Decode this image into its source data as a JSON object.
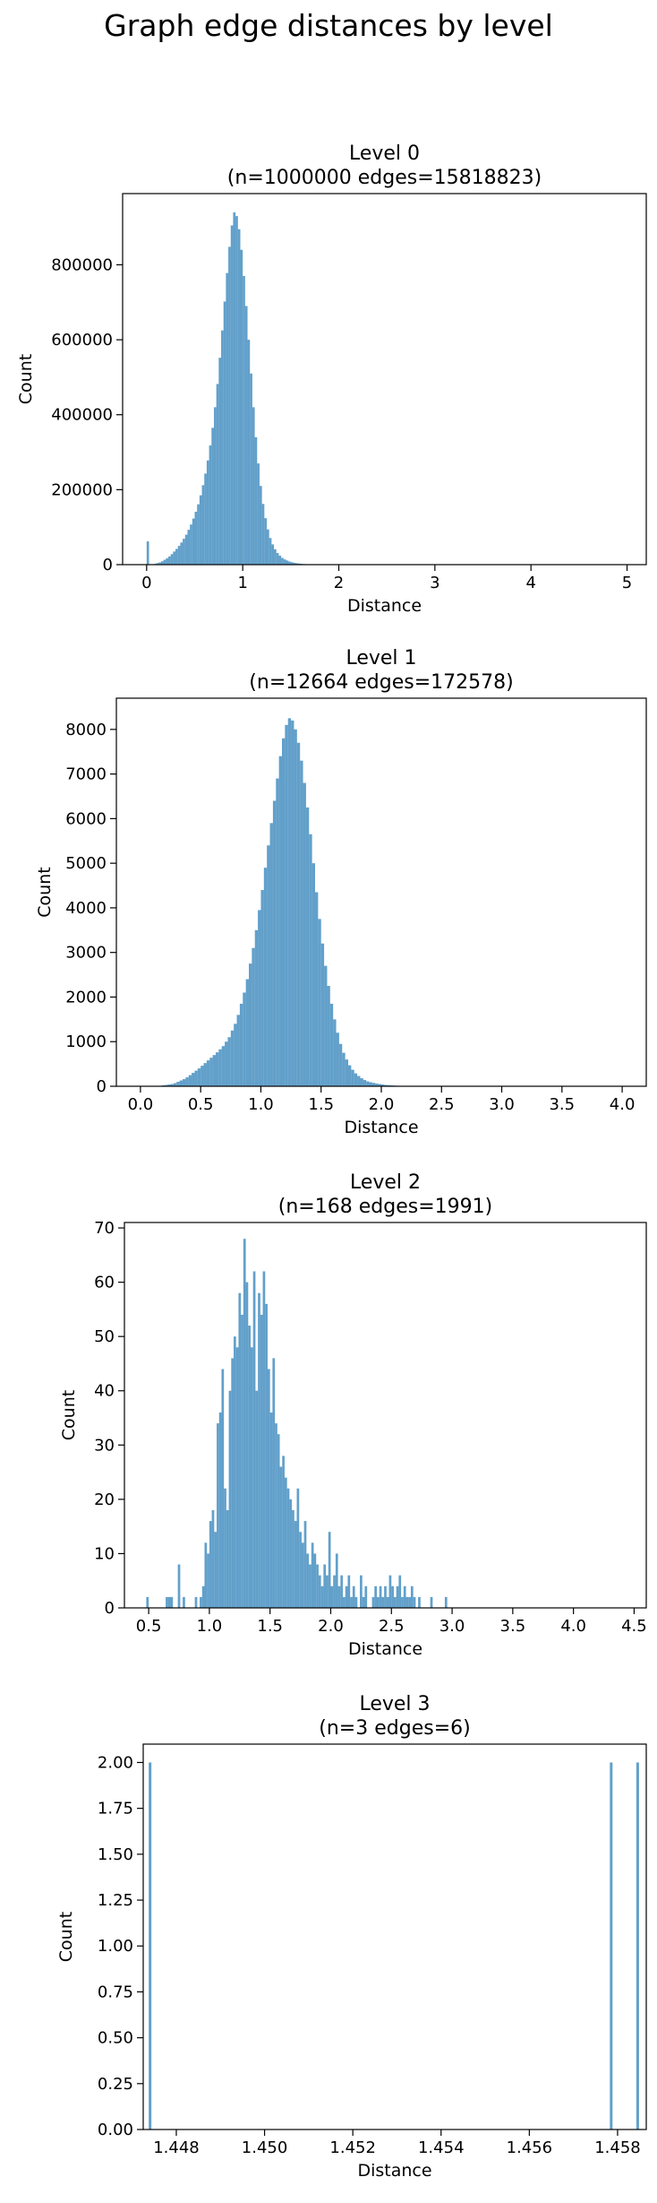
{
  "figure": {
    "suptitle": "Graph edge distances by level"
  },
  "chart_data": [
    {
      "type": "bar",
      "title_line1": "Level 0",
      "title_line2": "(n=1000000 edges=15818823)",
      "xlabel": "Distance",
      "ylabel": "Count",
      "xlim": [
        -0.25,
        5.2
      ],
      "ylim": [
        0,
        990000
      ],
      "xticks": [
        0,
        1,
        2,
        3,
        4,
        5
      ],
      "xtick_labels": [
        "0",
        "1",
        "2",
        "3",
        "4",
        "5"
      ],
      "yticks": [
        0,
        200000,
        400000,
        600000,
        800000
      ],
      "ytick_labels": [
        "0",
        "200000",
        "400000",
        "600000",
        "800000"
      ],
      "bin_start": 0,
      "bin_width": 0.025,
      "color": "#1f77b4",
      "values": [
        62000,
        0,
        0,
        2000,
        4000,
        6000,
        9000,
        13000,
        17000,
        22000,
        28000,
        35000,
        42000,
        50000,
        59000,
        69000,
        80000,
        93000,
        107000,
        123000,
        141000,
        161000,
        185000,
        212000,
        243000,
        278000,
        318000,
        365000,
        420000,
        482000,
        552000,
        625000,
        702000,
        778000,
        848000,
        905000,
        940000,
        930000,
        895000,
        840000,
        770000,
        690000,
        600000,
        510000,
        420000,
        340000,
        270000,
        210000,
        162000,
        124000,
        94000,
        71000,
        54000,
        41000,
        31000,
        24000,
        18000,
        14000,
        11000,
        8500,
        6500,
        5000,
        3800,
        2900,
        2200,
        1600,
        1200,
        900,
        650,
        450,
        300,
        200,
        130,
        80,
        50,
        30,
        20,
        10
      ]
    },
    {
      "type": "bar",
      "title_line1": "Level 1",
      "title_line2": "(n=12664 edges=172578)",
      "xlabel": "Distance",
      "ylabel": "Count",
      "xlim": [
        -0.2,
        4.2
      ],
      "ylim": [
        0,
        8700
      ],
      "xticks": [
        0,
        0.5,
        1,
        1.5,
        2,
        2.5,
        3,
        3.5,
        4
      ],
      "xtick_labels": [
        "0.0",
        "0.5",
        "1.0",
        "1.5",
        "2.0",
        "2.5",
        "3.0",
        "3.5",
        "4.0"
      ],
      "yticks": [
        0,
        1000,
        2000,
        3000,
        4000,
        5000,
        6000,
        7000,
        8000
      ],
      "ytick_labels": [
        "0",
        "1000",
        "2000",
        "3000",
        "4000",
        "5000",
        "6000",
        "7000",
        "8000"
      ],
      "bin_start": 0,
      "bin_width": 0.025,
      "color": "#1f77b4",
      "values": [
        0,
        0,
        0,
        0,
        0,
        0,
        10,
        20,
        30,
        40,
        50,
        70,
        100,
        130,
        160,
        200,
        250,
        300,
        350,
        400,
        460,
        520,
        580,
        640,
        700,
        760,
        830,
        900,
        1000,
        1100,
        1250,
        1400,
        1600,
        1850,
        2100,
        2400,
        2750,
        3100,
        3500,
        3950,
        4400,
        4900,
        5400,
        5900,
        6400,
        6900,
        7400,
        7800,
        8100,
        8250,
        8200,
        8000,
        7700,
        7300,
        6800,
        6250,
        5650,
        5000,
        4350,
        3750,
        3200,
        2700,
        2250,
        1850,
        1500,
        1200,
        950,
        750,
        600,
        470,
        370,
        290,
        230,
        180,
        140,
        110,
        90,
        75,
        60,
        50,
        40,
        30,
        25,
        20,
        15,
        12,
        10,
        8,
        6,
        5,
        4,
        3,
        2,
        1,
        1
      ]
    },
    {
      "type": "bar",
      "title_line1": "Level 2",
      "title_line2": "(n=168 edges=1991)",
      "xlabel": "Distance",
      "ylabel": "Count",
      "xlim": [
        0.3,
        4.6
      ],
      "ylim": [
        0,
        71
      ],
      "xticks": [
        0.5,
        1,
        1.5,
        2,
        2.5,
        3,
        3.5,
        4,
        4.5
      ],
      "xtick_labels": [
        "0.5",
        "1.0",
        "1.5",
        "2.0",
        "2.5",
        "3.0",
        "3.5",
        "4.0",
        "4.5"
      ],
      "yticks": [
        0,
        10,
        20,
        30,
        40,
        50,
        60,
        70
      ],
      "ytick_labels": [
        "0",
        "10",
        "20",
        "30",
        "40",
        "50",
        "60",
        "70"
      ],
      "bin_start": 0.48,
      "bin_width": 0.02,
      "color": "#1f77b4",
      "values": [
        2,
        0,
        0,
        0,
        0,
        0,
        0,
        0,
        2,
        2,
        2,
        0,
        0,
        8,
        0,
        2,
        0,
        0,
        0,
        0,
        2,
        0,
        2,
        4,
        12,
        10,
        16,
        18,
        14,
        34,
        36,
        44,
        22,
        18,
        40,
        46,
        50,
        48,
        58,
        54,
        68,
        60,
        52,
        48,
        62,
        40,
        58,
        54,
        62,
        56,
        44,
        36,
        46,
        34,
        32,
        26,
        28,
        24,
        22,
        20,
        18,
        16,
        22,
        14,
        12,
        16,
        10,
        8,
        12,
        10,
        8,
        6,
        4,
        8,
        6,
        14,
        4,
        6,
        10,
        4,
        6,
        2,
        4,
        6,
        2,
        4,
        2,
        0,
        6,
        2,
        4,
        0,
        0,
        2,
        4,
        2,
        4,
        2,
        4,
        2,
        6,
        4,
        2,
        4,
        6,
        2,
        4,
        2,
        2,
        4,
        2,
        0,
        2,
        0,
        0,
        0,
        0,
        2,
        0,
        0,
        0,
        0,
        0,
        2,
        0,
        0,
        0,
        0,
        0,
        0,
        0,
        0,
        0,
        0,
        0,
        0,
        0,
        0,
        0,
        0,
        0,
        0,
        0,
        0,
        0,
        0,
        0,
        0,
        0,
        0,
        0,
        0,
        0,
        0,
        0,
        0,
        0,
        0,
        0,
        0,
        0,
        0,
        0,
        0,
        0,
        0,
        0,
        0,
        0,
        0,
        0,
        0,
        0,
        0,
        0,
        0,
        0,
        0,
        0,
        0,
        0,
        0,
        0,
        0,
        0,
        0,
        0,
        0,
        0,
        0,
        0,
        0,
        0,
        0,
        0,
        0,
        0,
        0,
        0,
        0
      ]
    },
    {
      "type": "bar",
      "title_line1": "Level 3",
      "title_line2": "(n=3 edges=6)",
      "xlabel": "Distance",
      "ylabel": "Count",
      "xlim": [
        1.44725,
        1.45865
      ],
      "ylim": [
        0,
        2.1
      ],
      "xticks": [
        1.448,
        1.45,
        1.452,
        1.454,
        1.456,
        1.458
      ],
      "xtick_labels": [
        "1.448",
        "1.450",
        "1.452",
        "1.454",
        "1.456",
        "1.458"
      ],
      "yticks": [
        0,
        0.25,
        0.5,
        0.75,
        1,
        1.25,
        1.5,
        1.75,
        2
      ],
      "ytick_labels": [
        "0.00",
        "0.25",
        "0.50",
        "0.75",
        "1.00",
        "1.25",
        "1.50",
        "1.75",
        "2.00"
      ],
      "bars": [
        {
          "x": 1.4474,
          "value": 2
        },
        {
          "x": 1.45785,
          "value": 2
        },
        {
          "x": 1.45845,
          "value": 2
        }
      ],
      "bin_width": 5e-05,
      "color": "#1f77b4"
    }
  ]
}
